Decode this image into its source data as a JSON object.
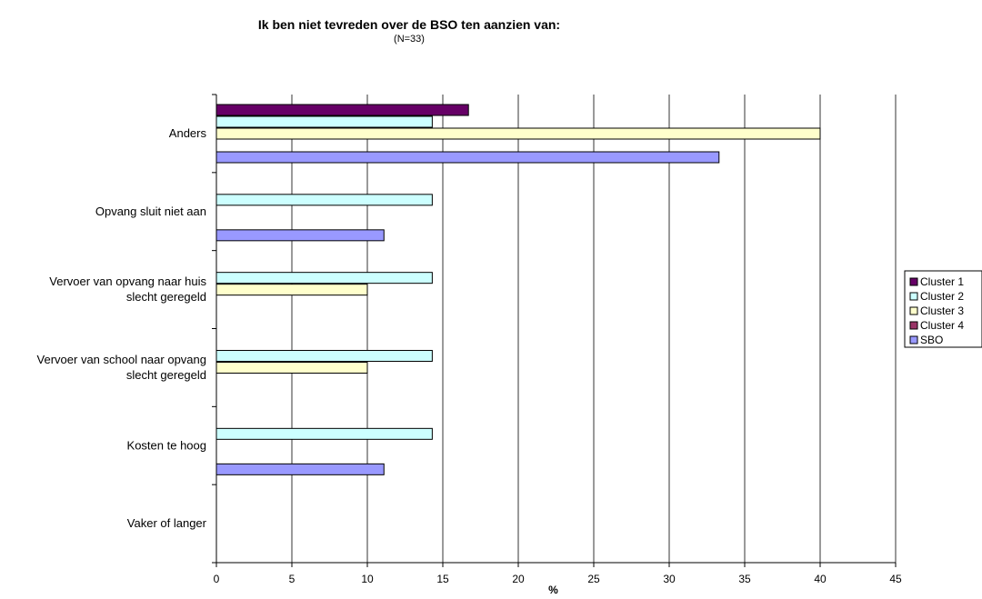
{
  "chart_data": {
    "type": "bar",
    "orientation": "horizontal",
    "title": "Ik ben niet tevreden over de BSO ten aanzien van:",
    "subtitle": "(N=33)",
    "xlabel": "%",
    "xlim": [
      0,
      45
    ],
    "xticks": [
      0,
      5,
      10,
      15,
      20,
      25,
      30,
      35,
      40,
      45
    ],
    "grid": "vertical",
    "legend_position": "right",
    "categories": [
      [
        "Anders"
      ],
      [
        "Opvang sluit niet aan"
      ],
      [
        "Vervoer van opvang naar huis",
        "slecht geregeld"
      ],
      [
        "Vervoer van school naar opvang",
        "slecht geregeld"
      ],
      [
        "Kosten te hoog"
      ],
      [
        "Vaker of langer"
      ]
    ],
    "series": [
      {
        "name": "Cluster 1",
        "color": "#660066",
        "values": [
          16.7,
          0,
          0,
          0,
          0,
          0
        ]
      },
      {
        "name": "Cluster 2",
        "color": "#CCFFFF",
        "values": [
          14.3,
          14.3,
          14.3,
          14.3,
          14.3,
          0
        ]
      },
      {
        "name": "Cluster 3",
        "color": "#FFFFCC",
        "values": [
          40,
          0,
          10,
          10,
          0,
          0
        ]
      },
      {
        "name": "Cluster 4",
        "color": "#993366",
        "values": [
          0,
          0,
          0,
          0,
          0,
          0
        ]
      },
      {
        "name": "SBO",
        "color": "#9999FF",
        "values": [
          33.3,
          11.1,
          0,
          0,
          11.1,
          0
        ]
      }
    ]
  }
}
